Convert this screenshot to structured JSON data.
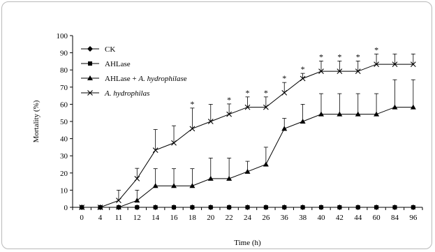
{
  "chart_data": {
    "type": "line",
    "title": "",
    "xlabel": "Time (h)",
    "ylabel": "Mortality (%)",
    "ylim": [
      0,
      100
    ],
    "yticks": [
      0,
      10,
      20,
      30,
      40,
      50,
      60,
      70,
      80,
      90,
      100
    ],
    "categories": [
      "0",
      "4",
      "11",
      "12",
      "14",
      "16",
      "18",
      "20",
      "22",
      "24",
      "26",
      "36",
      "38",
      "40",
      "42",
      "44",
      "60",
      "84",
      "96"
    ],
    "legend_position": "top-left",
    "grid": false,
    "series": [
      {
        "name": "CK",
        "marker": "diamond",
        "values": [
          0,
          0,
          0,
          0,
          0,
          0,
          0,
          0,
          0,
          0,
          0,
          0,
          0,
          0,
          0,
          0,
          0,
          0,
          0
        ],
        "errors": [
          0,
          0,
          0,
          0,
          0,
          0,
          0,
          0,
          0,
          0,
          0,
          0,
          0,
          0,
          0,
          0,
          0,
          0,
          0
        ]
      },
      {
        "name": "AHLase",
        "marker": "square",
        "values": [
          0,
          0,
          0,
          0,
          0,
          0,
          0,
          0,
          0,
          0,
          0,
          0,
          0,
          0,
          0,
          0,
          0,
          0,
          0
        ],
        "errors": [
          0,
          0,
          0,
          0,
          0,
          0,
          0,
          0,
          0,
          0,
          0,
          0,
          0,
          0,
          0,
          0,
          0,
          0,
          0
        ]
      },
      {
        "name_parts": [
          {
            "text": "AHLase + ",
            "italic": false
          },
          {
            "text": "A. hydrophilas",
            "italic": true
          },
          {
            "text": "e",
            "italic": false
          }
        ],
        "marker": "triangle",
        "values": [
          0,
          0,
          0,
          4,
          12.5,
          12.5,
          12.5,
          16.7,
          16.7,
          20.8,
          25,
          45.8,
          50,
          54.2,
          54.2,
          54.2,
          54.2,
          58.3,
          58.3
        ],
        "errors": [
          0,
          0,
          0,
          6,
          10,
          10,
          10,
          12,
          12,
          6,
          10,
          6,
          10,
          12,
          12,
          12,
          12,
          16,
          16
        ]
      },
      {
        "name": "A. hydrophilas",
        "name_italic": true,
        "marker": "x",
        "values": [
          0,
          0,
          4,
          16.7,
          33.3,
          37.5,
          45.8,
          50,
          54.2,
          58.3,
          58.3,
          66.7,
          75,
          79.2,
          79.2,
          79.2,
          83.3,
          83.3,
          83.3
        ],
        "errors": [
          0,
          0,
          6,
          6,
          12,
          10,
          12,
          10,
          6,
          6,
          6,
          6,
          3,
          6,
          6,
          6,
          6,
          6,
          6
        ]
      }
    ],
    "significance_marks": [
      {
        "category": "18",
        "label": "*"
      },
      {
        "category": "22",
        "label": "*"
      },
      {
        "category": "24",
        "label": "*"
      },
      {
        "category": "26",
        "label": "*"
      },
      {
        "category": "36",
        "label": "*"
      },
      {
        "category": "38",
        "label": "*"
      },
      {
        "category": "40",
        "label": "*"
      },
      {
        "category": "42",
        "label": "*"
      },
      {
        "category": "44",
        "label": "*"
      },
      {
        "category": "60",
        "label": "*"
      }
    ]
  }
}
